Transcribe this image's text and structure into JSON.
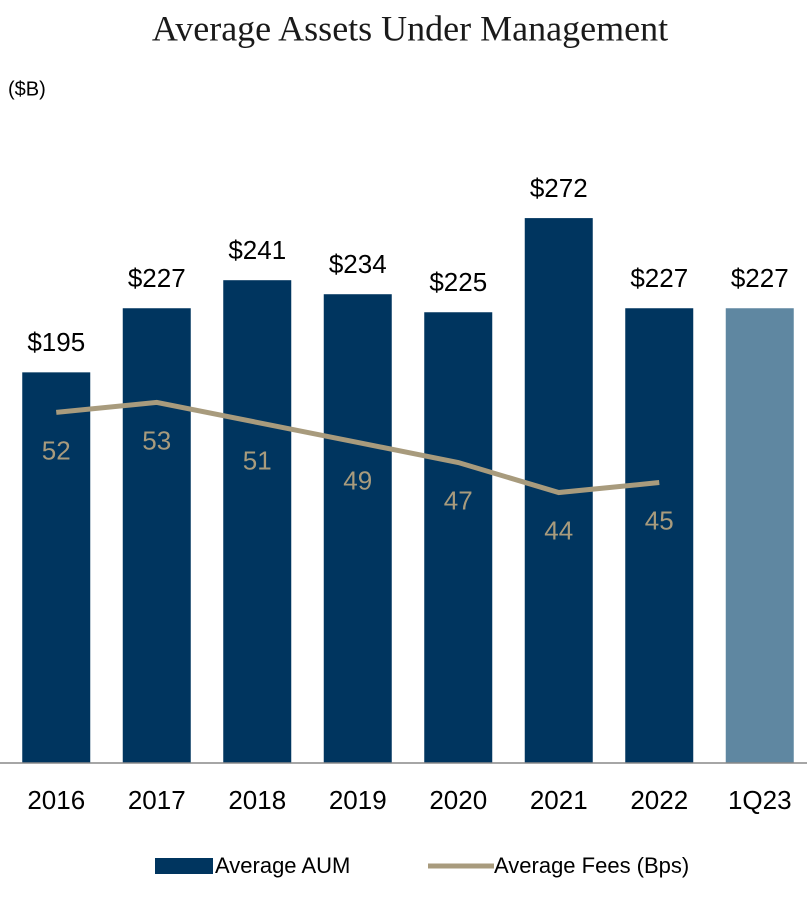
{
  "chart_data": {
    "type": "bar",
    "title": "Average Assets Under Management",
    "ylabel": "($B)",
    "categories": [
      "2016",
      "2017",
      "2018",
      "2019",
      "2020",
      "2021",
      "2022",
      "1Q23"
    ],
    "ylim": [
      0,
      300
    ],
    "y2lim": [
      17,
      77
    ],
    "legend": "bottom",
    "series": [
      {
        "name": "Average AUM",
        "type": "bar",
        "color": "#00355f",
        "colors": [
          "#00355f",
          "#00355f",
          "#00355f",
          "#00355f",
          "#00355f",
          "#00355f",
          "#00355f",
          "#5f87a1"
        ],
        "values": [
          195,
          227,
          241,
          234,
          225,
          272,
          227,
          227
        ],
        "value_labels": [
          "$195",
          "$227",
          "$241",
          "$234",
          "$225",
          "$272",
          "$227",
          "$227"
        ]
      },
      {
        "name": "Average Fees (Bps)",
        "type": "line",
        "axis": "y2",
        "color": "#a89b7d",
        "values": [
          52,
          53,
          51,
          49,
          47,
          44,
          45,
          null
        ]
      }
    ]
  }
}
